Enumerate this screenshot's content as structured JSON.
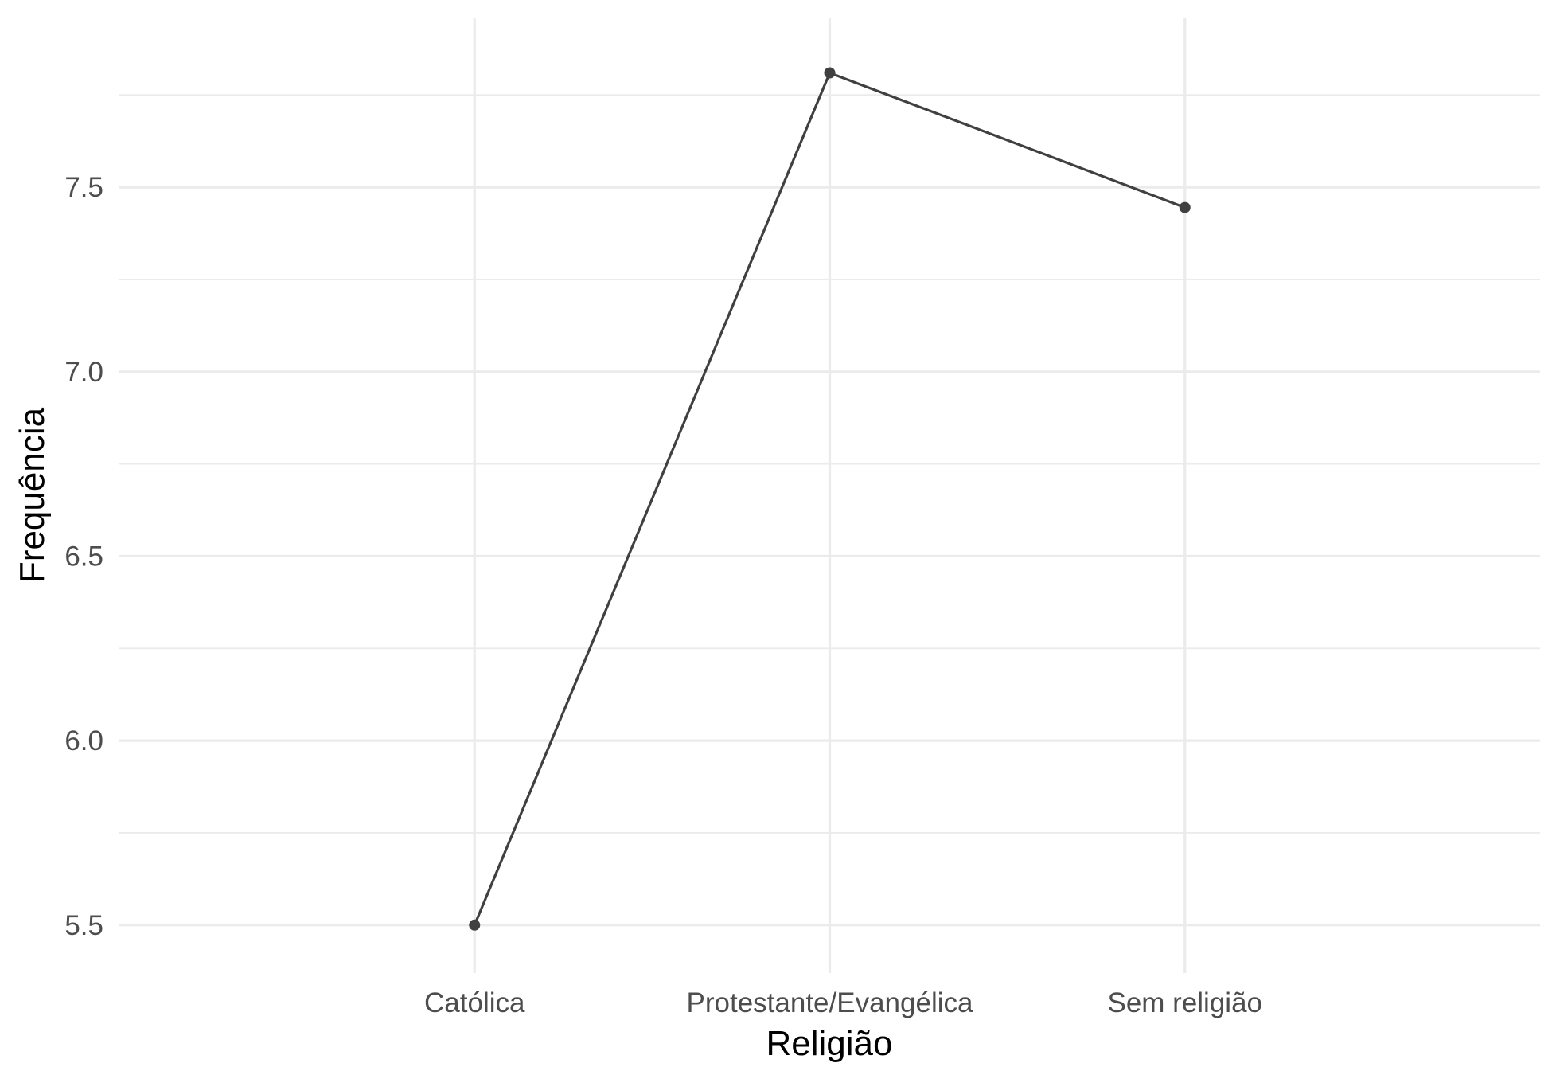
{
  "chart_data": {
    "type": "line",
    "title": "",
    "xlabel": "Religião",
    "ylabel": "Frequência",
    "categories": [
      "Católica",
      "Protestante/Evangélica",
      "Sem religião"
    ],
    "series": [
      {
        "values": [
          5.5,
          7.81,
          7.445
        ],
        "color": "#404040"
      }
    ],
    "ylim": [
      5.37,
      7.96
    ],
    "yticks": [
      5.5,
      6.0,
      6.5,
      7.0,
      7.5
    ],
    "ytick_labels": [
      "5.5",
      "6.0",
      "6.5",
      "7.0",
      "7.5"
    ],
    "grid": true,
    "legend": "none",
    "background": "#ffffff",
    "grid_color": "#ebebeb"
  }
}
